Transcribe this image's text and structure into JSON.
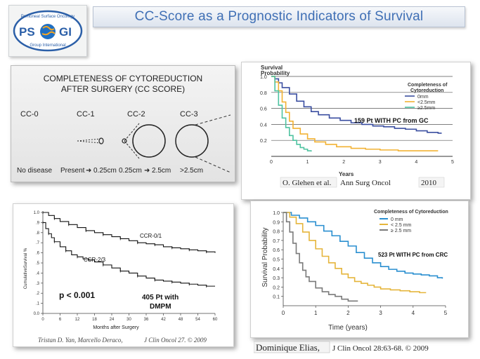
{
  "logo": {
    "top_text": "Peritoneal Surface Oncology",
    "left_letters": "PS",
    "right_letters": "GI",
    "bottom_text": "Group International"
  },
  "slide_title": "CC-Score as a Prognostic Indicators of Survival",
  "cc_diagram": {
    "heading_line1": "COMPLETENESS OF CYTOREDUCTION",
    "heading_line2": "AFTER SURGERY (CC SCORE)",
    "labels": [
      "CC-0",
      "CC-1",
      "CC-2",
      "CC-3"
    ],
    "captions": [
      "No disease",
      "Present",
      "0.25cm",
      "0.25cm",
      "2.5cm",
      ">2.5cm"
    ],
    "arrow_glyph": "➜"
  },
  "colors": {
    "blue": "#3a4ea0",
    "orange": "#f2b233",
    "green": "#4fc3a1",
    "crc_blue": "#2a8fd0",
    "crc_orange": "#e5b53b",
    "crc_gray": "#7a7a7a"
  },
  "chart_data": [
    {
      "type": "line",
      "ylabel_line1": "Survival",
      "ylabel_line2": "Probability",
      "xlabel": "Years",
      "xlim": [
        0,
        5
      ],
      "ylim": [
        0,
        1.0
      ],
      "xticks": [
        0,
        1,
        2,
        3,
        4,
        5
      ],
      "yticks": [
        0.2,
        0.4,
        0.6,
        0.8,
        1.0
      ],
      "ytick_labels": [
        "0.2",
        "0.4",
        "0.6",
        "0.8",
        "1.0"
      ],
      "legend_title_line1": "Completeness of",
      "legend_title_line2": "Cytoreduction",
      "annotation": "159 Pt WITH PC from GC",
      "citation_author": "O. Glehen et al.",
      "citation_journal": "Ann Surg Oncol",
      "citation_year": "2010",
      "series": [
        {
          "name": "0mm",
          "color": "#3a4ea0",
          "x": [
            0,
            0.1,
            0.2,
            0.3,
            0.5,
            0.7,
            0.9,
            1.1,
            1.3,
            1.6,
            1.9,
            2.2,
            2.5,
            2.8,
            3.1,
            3.4,
            3.7,
            4.0,
            4.3,
            4.6,
            4.7
          ],
          "y": [
            1.0,
            0.97,
            0.92,
            0.86,
            0.78,
            0.69,
            0.62,
            0.56,
            0.52,
            0.48,
            0.45,
            0.42,
            0.4,
            0.38,
            0.37,
            0.35,
            0.34,
            0.32,
            0.3,
            0.29,
            0.29
          ]
        },
        {
          "name": "<2.5mm",
          "color": "#f2b233",
          "x": [
            0,
            0.1,
            0.2,
            0.3,
            0.4,
            0.5,
            0.6,
            0.8,
            1.0,
            1.2,
            1.5,
            1.8,
            2.2,
            2.6,
            3.0,
            3.5,
            4.0,
            4.5,
            4.6
          ],
          "y": [
            1.0,
            0.93,
            0.82,
            0.68,
            0.55,
            0.44,
            0.35,
            0.28,
            0.22,
            0.18,
            0.15,
            0.12,
            0.1,
            0.09,
            0.08,
            0.07,
            0.07,
            0.07,
            0.07
          ]
        },
        {
          "name": "≥2.5mm",
          "color": "#4fc3a1",
          "x": [
            0,
            0.1,
            0.2,
            0.3,
            0.4,
            0.5,
            0.6,
            0.7,
            0.8,
            0.9,
            1.0,
            1.1
          ],
          "y": [
            1.0,
            0.82,
            0.64,
            0.48,
            0.36,
            0.26,
            0.2,
            0.15,
            0.11,
            0.09,
            0.07,
            0.06
          ]
        }
      ]
    },
    {
      "type": "line",
      "ylabel": "CumulativeSurvival %",
      "xlabel": "Months after Surgery",
      "xlim": [
        0,
        60
      ],
      "ylim": [
        0,
        1.0
      ],
      "xticks": [
        0,
        6,
        12,
        18,
        24,
        30,
        36,
        42,
        48,
        54,
        60
      ],
      "yticks": [
        0,
        0.1,
        0.2,
        0.3,
        0.4,
        0.5,
        0.6,
        0.7,
        0.8,
        0.9,
        1.0
      ],
      "ytick_labels": [
        "0.0",
        ".1",
        ".2",
        ".3",
        ".4",
        ".5",
        ".6",
        ".7",
        ".8",
        ".9",
        "1.0"
      ],
      "p_value": "p < 0.001",
      "patients_line1": "405 Pt with",
      "patients_line2": "DMPM",
      "citation": "Tristan D. Yan, Marcello Deraco,",
      "citation_journal": "J Clin Oncol 27. © 2009",
      "series": [
        {
          "name": "CCR-0/1",
          "color": "#111111",
          "x": [
            0,
            2,
            4,
            6,
            9,
            12,
            15,
            18,
            21,
            24,
            27,
            30,
            33,
            36,
            39,
            42,
            45,
            48,
            51,
            54,
            57,
            60
          ],
          "y": [
            1.0,
            0.97,
            0.94,
            0.91,
            0.88,
            0.85,
            0.82,
            0.8,
            0.78,
            0.76,
            0.74,
            0.72,
            0.7,
            0.69,
            0.68,
            0.66,
            0.65,
            0.64,
            0.63,
            0.62,
            0.61,
            0.6
          ]
        },
        {
          "name": "CCR-2/3",
          "color": "#111111",
          "x": [
            0,
            1,
            2,
            3,
            4,
            6,
            8,
            10,
            12,
            14,
            16,
            18,
            21,
            24,
            27,
            30,
            33,
            36,
            39,
            42,
            45,
            48,
            51,
            54,
            57,
            60
          ],
          "y": [
            0.9,
            0.84,
            0.79,
            0.75,
            0.71,
            0.66,
            0.62,
            0.58,
            0.56,
            0.54,
            0.53,
            0.51,
            0.48,
            0.45,
            0.42,
            0.4,
            0.37,
            0.35,
            0.33,
            0.32,
            0.31,
            0.3,
            0.29,
            0.28,
            0.27,
            0.27
          ]
        }
      ]
    },
    {
      "type": "line",
      "ylabel": "Survival Probability",
      "xlabel": "Time (years)",
      "xlim": [
        0,
        5
      ],
      "ylim": [
        0,
        1.0
      ],
      "xticks": [
        0,
        1,
        2,
        3,
        4,
        5
      ],
      "yticks": [
        0.1,
        0.2,
        0.3,
        0.4,
        0.5,
        0.6,
        0.7,
        0.8,
        0.9,
        1.0
      ],
      "ytick_labels": [
        "0.1",
        "0.2",
        "0.3",
        "0.4",
        "0.5",
        "0.6",
        "0.7",
        "0.8",
        "0.9",
        "1.0"
      ],
      "legend_title": "Completeness of Cytoreduction",
      "annotation": "523 Pt WITH PC from CRC",
      "citation": "Dominique Elias,",
      "citation_journal": "J Clin Oncol 28:63-68. © 2009",
      "series": [
        {
          "name": "0 mm",
          "color": "#2a8fd0",
          "x": [
            0,
            0.25,
            0.5,
            0.75,
            1.0,
            1.25,
            1.5,
            1.75,
            2.0,
            2.25,
            2.5,
            2.75,
            3.0,
            3.25,
            3.5,
            3.75,
            4.0,
            4.25,
            4.5,
            4.75,
            4.9
          ],
          "y": [
            1.0,
            0.97,
            0.94,
            0.9,
            0.86,
            0.8,
            0.75,
            0.69,
            0.64,
            0.57,
            0.51,
            0.46,
            0.42,
            0.39,
            0.37,
            0.35,
            0.34,
            0.33,
            0.32,
            0.3,
            0.29
          ]
        },
        {
          "name": "< 2.5 mm",
          "color": "#e5b53b",
          "x": [
            0,
            0.2,
            0.4,
            0.6,
            0.8,
            1.0,
            1.2,
            1.4,
            1.6,
            1.8,
            2.0,
            2.2,
            2.4,
            2.6,
            2.8,
            3.0,
            3.3,
            3.6,
            3.9,
            4.2,
            4.4
          ],
          "y": [
            1.0,
            0.95,
            0.88,
            0.79,
            0.7,
            0.61,
            0.53,
            0.46,
            0.4,
            0.34,
            0.3,
            0.26,
            0.24,
            0.22,
            0.2,
            0.18,
            0.17,
            0.16,
            0.15,
            0.14,
            0.14
          ]
        },
        {
          "name": "≥ 2.5 mm",
          "color": "#7a7a7a",
          "x": [
            0,
            0.1,
            0.2,
            0.3,
            0.4,
            0.5,
            0.6,
            0.7,
            0.8,
            1.0,
            1.2,
            1.4,
            1.6,
            1.8,
            2.0,
            2.3
          ],
          "y": [
            1.0,
            0.9,
            0.79,
            0.67,
            0.56,
            0.46,
            0.38,
            0.31,
            0.26,
            0.19,
            0.15,
            0.12,
            0.1,
            0.07,
            0.05,
            0.05
          ]
        }
      ]
    }
  ]
}
